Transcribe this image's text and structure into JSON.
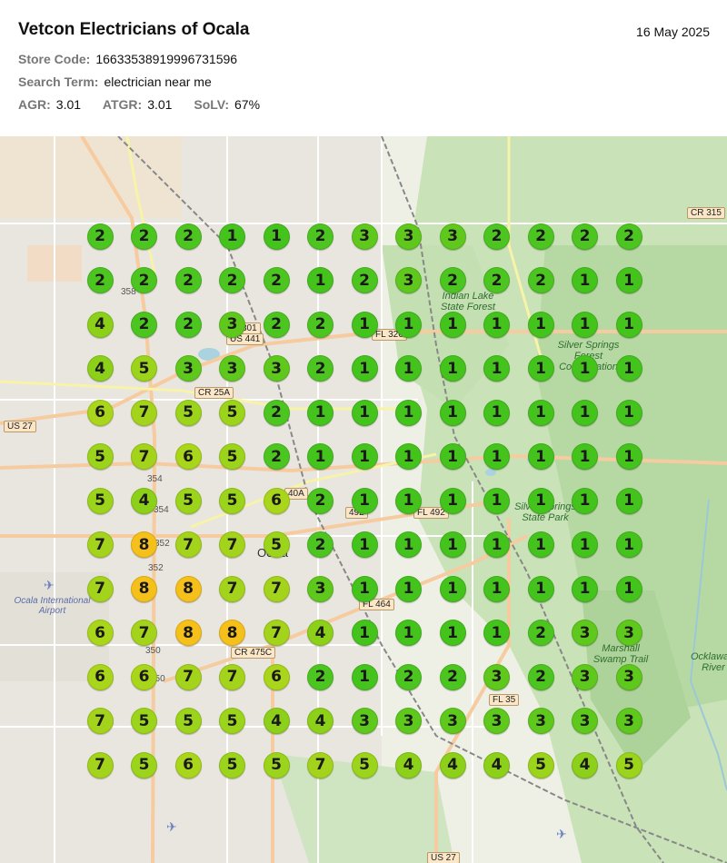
{
  "header": {
    "title": "Vetcon Electricians of Ocala",
    "date": "16 May 2025",
    "store_code_label": "Store Code:",
    "store_code": "16633538919996731596",
    "search_term_label": "Search Term:",
    "search_term": "electrician near me",
    "agr_label": "AGR:",
    "agr": "3.01",
    "atgr_label": "ATGR:",
    "atgr": "3.01",
    "solv_label": "SoLV:",
    "solv": "67%"
  },
  "map": {
    "labels": {
      "us27_west": "US 27",
      "us27_south": "US 27",
      "cr315": "CR 315",
      "us301": "301",
      "us441": "US 441",
      "fl326": "FL 326",
      "cr25a": "CR 25A",
      "fl492": "FL 492",
      "rt492": "492",
      "fl464": "FL 464",
      "cr475c": "CR 475C",
      "fl35": "FL 35",
      "r358": "358",
      "r354a": "354",
      "r354b": "354",
      "r352a": "352",
      "r352b": "352",
      "r350a": "350",
      "r350b": "350",
      "r40": "40",
      "r40a": "40A",
      "ocala": "Ocala",
      "indian_lake": "Indian Lake State Forest",
      "silver_springs_cons": "Silver Springs Forest Conservation",
      "silver_springs_park": "Silver Springs State Park",
      "marshall_swamp": "Marshall Swamp Trail",
      "ocklawaha": "Ocklawaha River",
      "ocala_airport": "Ocala International Airport"
    },
    "rank_colors": {
      "1": "#45c31d",
      "2": "#4dc520",
      "3": "#5fc81c",
      "4": "#8cd01a",
      "5": "#9bd41b",
      "6": "#a9d61a",
      "7": "#a4d31c",
      "8": "#f5c01a"
    },
    "grid": [
      [
        2,
        2,
        2,
        1,
        1,
        2,
        3,
        3,
        3,
        2,
        2,
        2,
        2
      ],
      [
        2,
        2,
        2,
        2,
        2,
        1,
        2,
        3,
        2,
        2,
        2,
        1,
        1
      ],
      [
        4,
        2,
        2,
        3,
        2,
        2,
        1,
        1,
        1,
        1,
        1,
        1,
        1
      ],
      [
        4,
        5,
        3,
        3,
        3,
        2,
        1,
        1,
        1,
        1,
        1,
        1,
        1
      ],
      [
        6,
        7,
        5,
        5,
        2,
        1,
        1,
        1,
        1,
        1,
        1,
        1,
        1
      ],
      [
        5,
        7,
        6,
        5,
        2,
        1,
        1,
        1,
        1,
        1,
        1,
        1,
        1
      ],
      [
        5,
        4,
        5,
        5,
        6,
        2,
        1,
        1,
        1,
        1,
        1,
        1,
        1
      ],
      [
        7,
        8,
        7,
        7,
        5,
        2,
        1,
        1,
        1,
        1,
        1,
        1,
        1
      ],
      [
        7,
        8,
        8,
        7,
        7,
        3,
        1,
        1,
        1,
        1,
        1,
        1,
        1
      ],
      [
        6,
        7,
        8,
        8,
        7,
        4,
        1,
        1,
        1,
        1,
        2,
        3,
        3
      ],
      [
        6,
        6,
        7,
        7,
        6,
        2,
        1,
        2,
        2,
        3,
        2,
        3,
        3
      ],
      [
        7,
        5,
        5,
        5,
        4,
        4,
        3,
        3,
        3,
        3,
        3,
        3,
        3
      ],
      [
        7,
        5,
        6,
        5,
        5,
        7,
        5,
        4,
        4,
        4,
        5,
        4,
        5
      ]
    ]
  }
}
